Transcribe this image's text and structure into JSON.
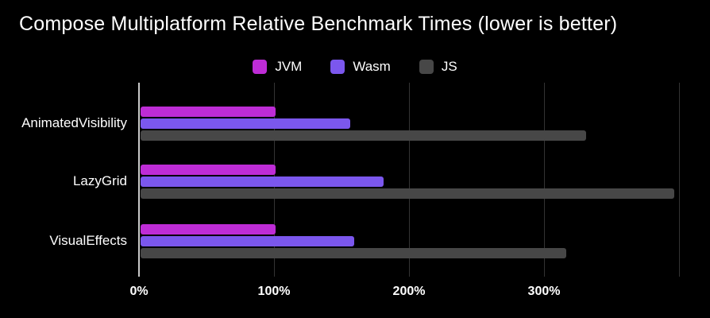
{
  "chart_data": {
    "type": "bar",
    "orientation": "horizontal",
    "title": "Compose Multiplatform Relative Benchmark Times (lower is better)",
    "categories": [
      "AnimatedVisibility",
      "LazyGrid",
      "VisualEffects"
    ],
    "series": [
      {
        "name": "JVM",
        "color": "#be2cd6",
        "values": [
          100,
          100,
          100
        ]
      },
      {
        "name": "Wasm",
        "color": "#7b57ed",
        "values": [
          155,
          180,
          158
        ]
      },
      {
        "name": "JS",
        "color": "#474747",
        "values": [
          330,
          395,
          315
        ]
      }
    ],
    "x_ticks": [
      "0%",
      "100%",
      "200%",
      "300%"
    ],
    "x_tick_values": [
      0,
      100,
      200,
      300
    ],
    "gridline_values": [
      0,
      100,
      200,
      300,
      400
    ],
    "xlim": [
      0,
      400
    ],
    "value_unit": "%",
    "legend_position": "top",
    "background_color": "#000000",
    "text_color": "#ffffff",
    "axis_line_color": "#c9c9c9",
    "gridline_color": "#333333"
  }
}
